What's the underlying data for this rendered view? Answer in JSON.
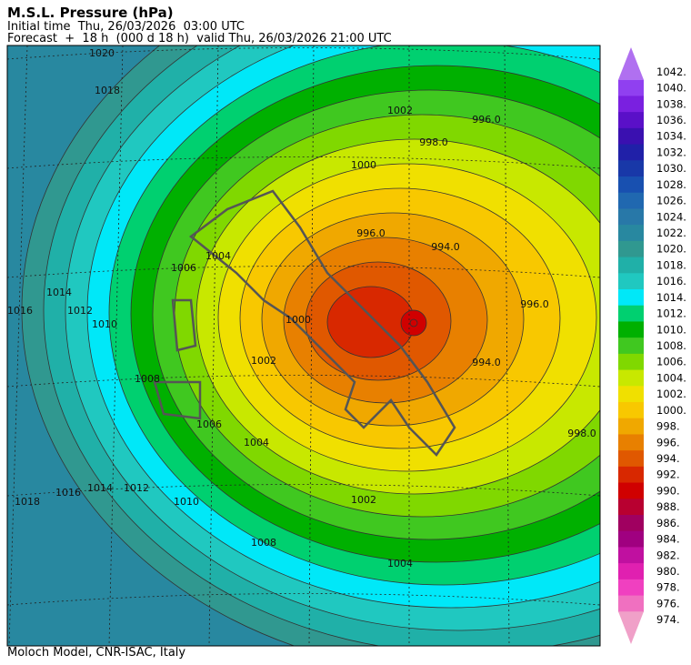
{
  "header": {
    "title": "M.S.L. Pressure (hPa)",
    "initial": "Initial time  Thu, 26/03/2026  03:00 UTC",
    "forecast": "Forecast  +  18 h  (000 d 18 h)  valid Thu, 26/03/2026 21:00 UTC"
  },
  "map": {
    "contour_labels": [
      "1020",
      "1018",
      "1016",
      "1014",
      "1012",
      "1010",
      "1008",
      "1006",
      "1004",
      "1002",
      "1000",
      "998.0",
      "996.0",
      "994.0",
      "996.0",
      "994.0",
      "996.0",
      "1002",
      "1004",
      "1006",
      "1008",
      "1010",
      "1012",
      "1014",
      "1016",
      "1018",
      "1004",
      "1000",
      "1002",
      "998.0"
    ]
  },
  "legend": {
    "levels": [
      {
        "label": "1042.",
        "color": "#b070f0"
      },
      {
        "label": "1040.",
        "color": "#9040f0"
      },
      {
        "label": "1038.",
        "color": "#7a20e0"
      },
      {
        "label": "1036.",
        "color": "#5a10c8"
      },
      {
        "label": "1034.",
        "color": "#3a10b0"
      },
      {
        "label": "1032.",
        "color": "#2020a8"
      },
      {
        "label": "1030.",
        "color": "#1838a8"
      },
      {
        "label": "1028.",
        "color": "#1850b0"
      },
      {
        "label": "1026.",
        "color": "#2068b0"
      },
      {
        "label": "1024.",
        "color": "#2878a8"
      },
      {
        "label": "1022.",
        "color": "#2888a0"
      },
      {
        "label": "1020.",
        "color": "#309890"
      },
      {
        "label": "1018.",
        "color": "#20b0a8"
      },
      {
        "label": "1016.",
        "color": "#20c8c0"
      },
      {
        "label": "1014.",
        "color": "#00e8f8"
      },
      {
        "label": "1012.",
        "color": "#00d070"
      },
      {
        "label": "1010.",
        "color": "#00b000"
      },
      {
        "label": "1008.",
        "color": "#40c820"
      },
      {
        "label": "1006.",
        "color": "#80d800"
      },
      {
        "label": "1004.",
        "color": "#c8e800"
      },
      {
        "label": "1002.",
        "color": "#f0e000"
      },
      {
        "label": "1000.",
        "color": "#f8c800"
      },
      {
        "label": "998.",
        "color": "#f0a800"
      },
      {
        "label": "996.",
        "color": "#e88000"
      },
      {
        "label": "994.",
        "color": "#e05800"
      },
      {
        "label": "992.",
        "color": "#d82800"
      },
      {
        "label": "990.",
        "color": "#d00000"
      },
      {
        "label": "988.",
        "color": "#b80030"
      },
      {
        "label": "986.",
        "color": "#a00060"
      },
      {
        "label": "984.",
        "color": "#a00080"
      },
      {
        "label": "982.",
        "color": "#c010a0"
      },
      {
        "label": "980.",
        "color": "#e020b0"
      },
      {
        "label": "978.",
        "color": "#f040c0"
      },
      {
        "label": "976.",
        "color": "#f070c0"
      },
      {
        "label": "974.",
        "color": "#f0a0c8"
      }
    ]
  },
  "footer": "Moloch Model, CNR-ISAC, Italy"
}
